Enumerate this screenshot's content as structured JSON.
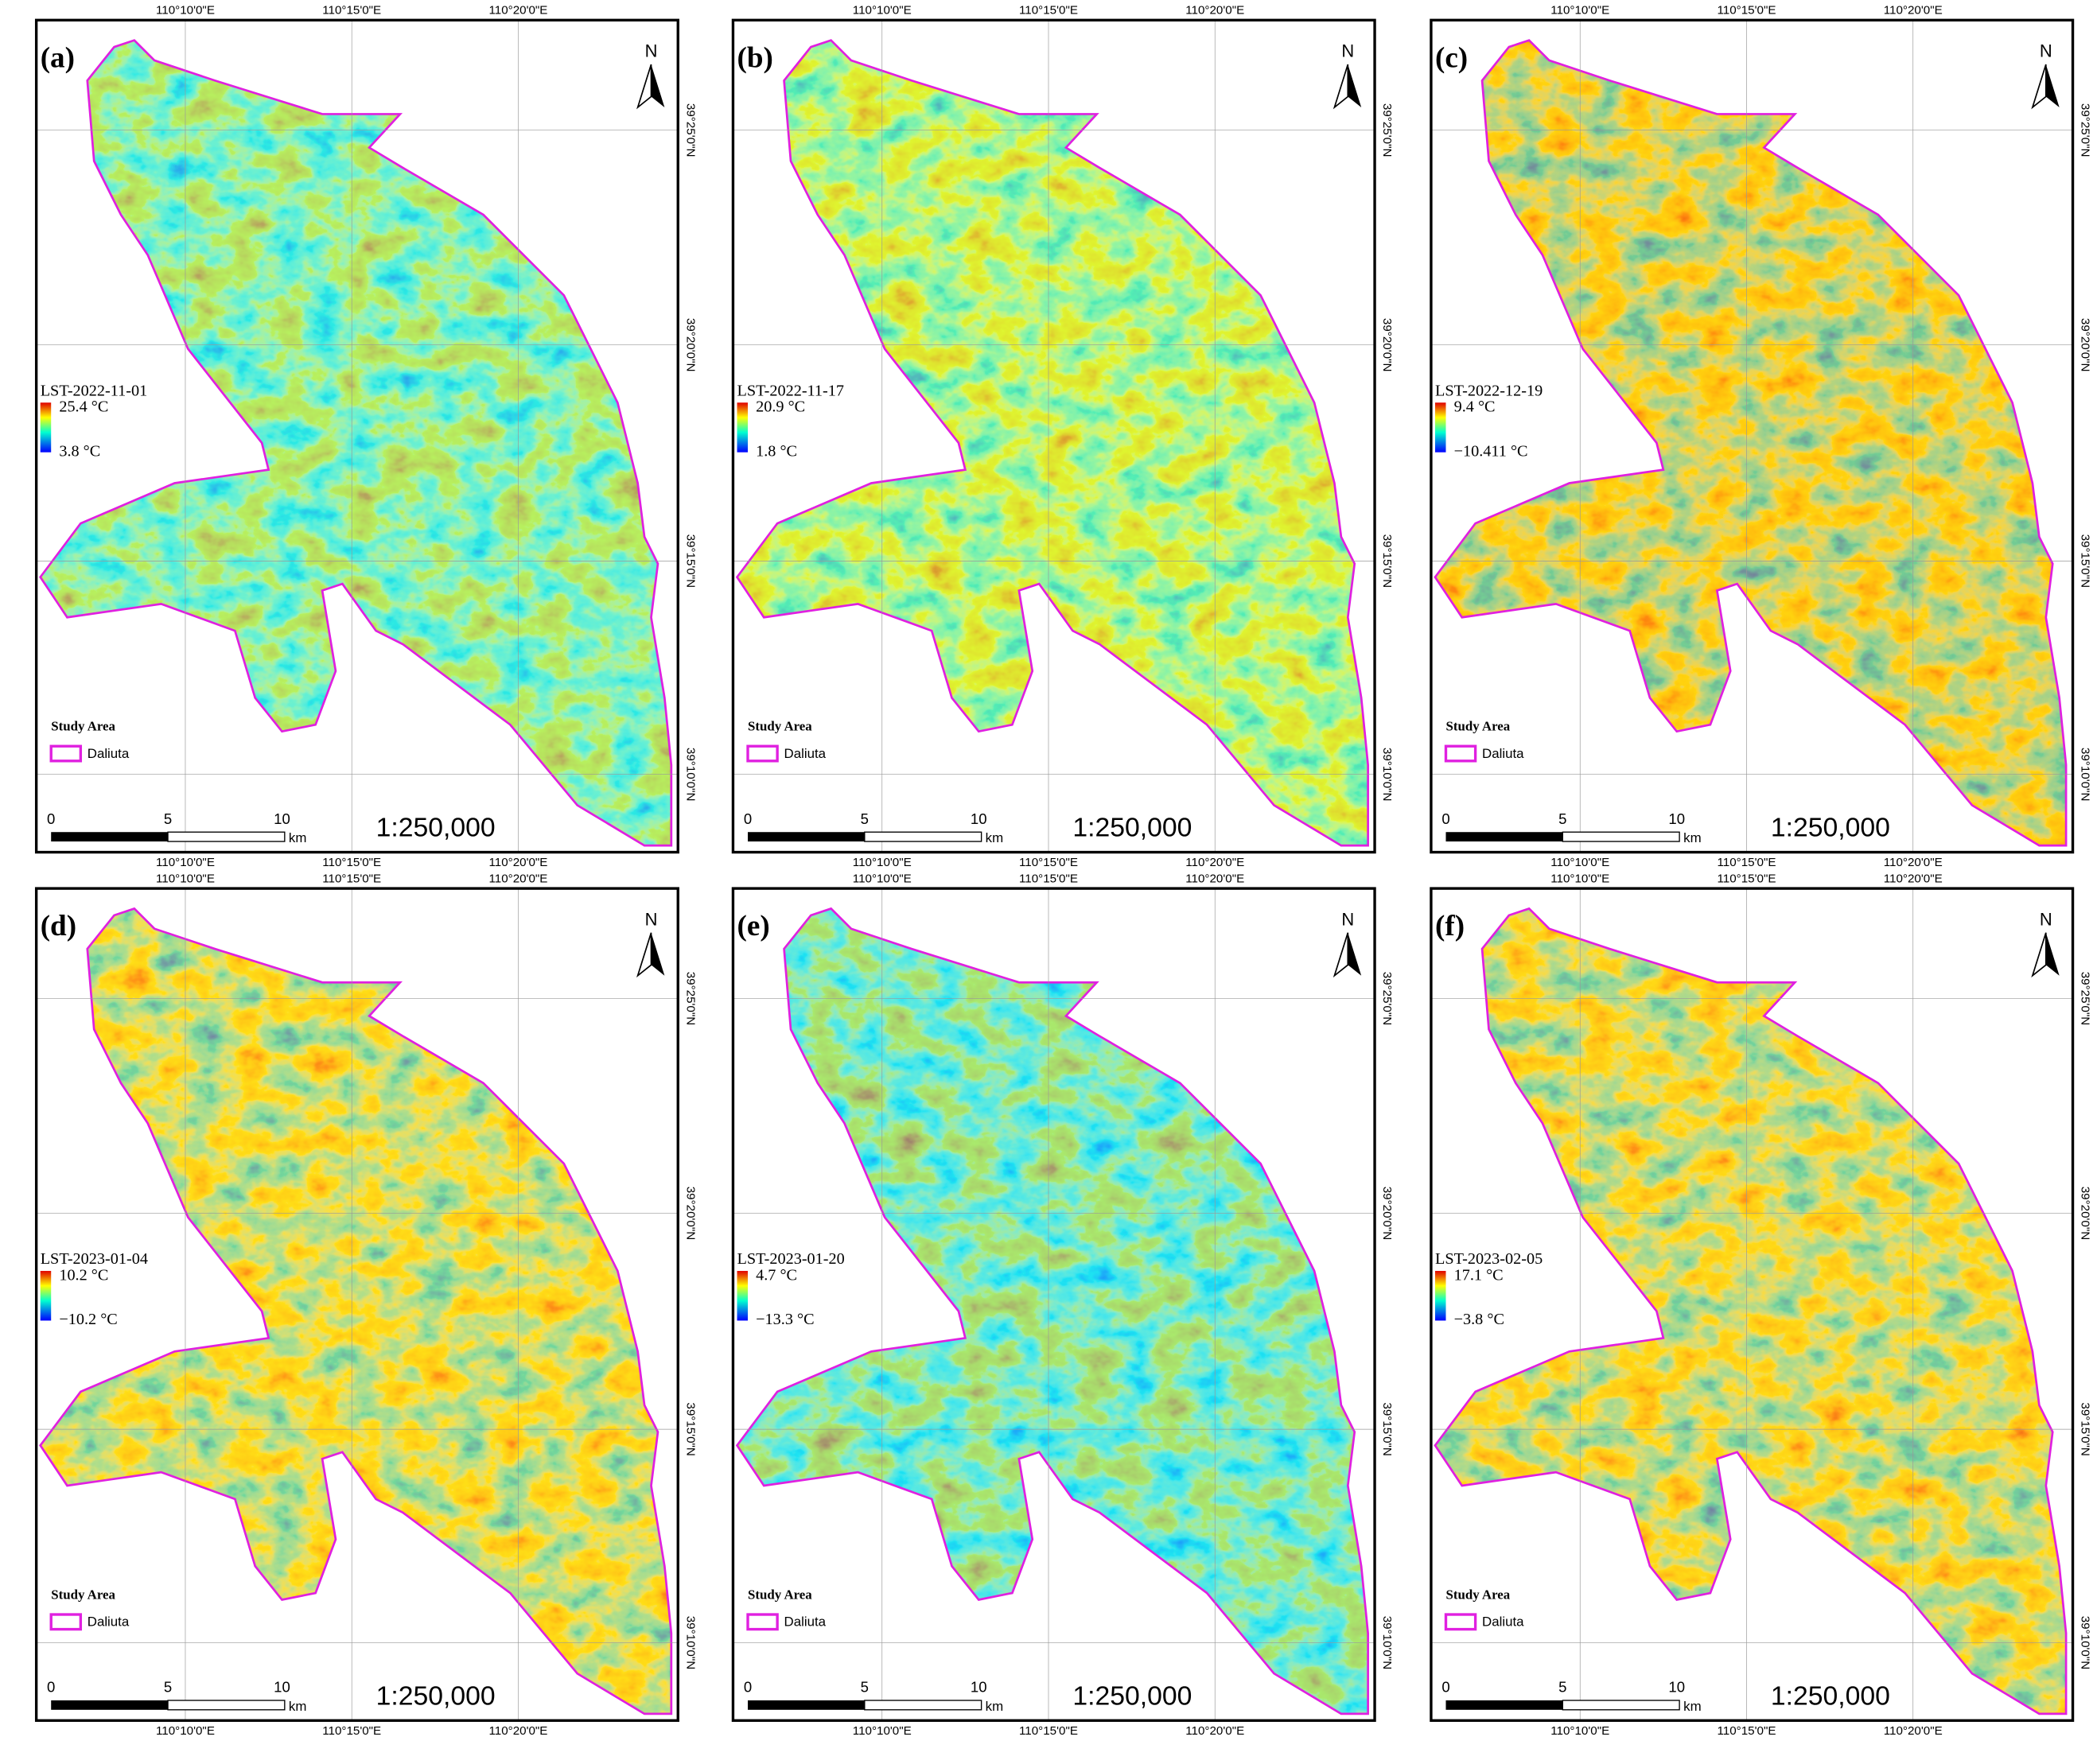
{
  "panels": [
    {
      "label": "(a)",
      "lst": "LST-2022-11-01",
      "max": "25.4 °C",
      "min": "3.8 °C"
    },
    {
      "label": "(b)",
      "lst": "LST-2022-11-17",
      "max": "20.9 °C",
      "min": "1.8 °C"
    },
    {
      "label": "(c)",
      "lst": "LST-2022-12-19",
      "max": "9.4 °C",
      "min": "−10.411 °C"
    },
    {
      "label": "(d)",
      "lst": "LST-2023-01-04",
      "max": "10.2 °C",
      "min": "−10.2 °C"
    },
    {
      "label": "(e)",
      "lst": "LST-2023-01-20",
      "max": "4.7 °C",
      "min": "−13.3 °C"
    },
    {
      "label": "(f)",
      "lst": "LST-2023-02-05",
      "max": "17.1 °C",
      "min": "−3.8 °C"
    }
  ],
  "grid_labels": {
    "longitude": [
      "110°10'0\"E",
      "110°15'0\"E",
      "110°20'0\"E"
    ],
    "latitude": [
      "39°25'0\"N",
      "39°20'0\"N",
      "39°15'0\"N",
      "39°10'0\"N"
    ]
  },
  "north": "N",
  "legend": {
    "title": "Study Area",
    "item": "Daliuta"
  },
  "scale_bar": {
    "ticks": [
      "0",
      "5",
      "10"
    ],
    "unit": "km",
    "ratio": "1:250,000"
  }
}
